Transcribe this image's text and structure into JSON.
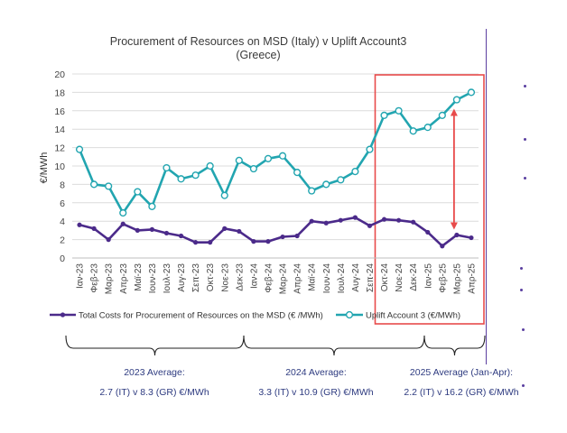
{
  "chart_data": {
    "type": "line",
    "title": "Procurement of Resources on MSD (Italy) v Uplift Account3",
    "subtitle": "(Greece)",
    "ylabel": "€/MWh",
    "xlabel": "",
    "ylim": [
      0,
      20
    ],
    "yticks": [
      0,
      2,
      4,
      6,
      8,
      10,
      12,
      14,
      16,
      18,
      20
    ],
    "grid": true,
    "categories": [
      "Ιαν-23",
      "Φεβ-23",
      "Μαρ-23",
      "Απρ-23",
      "Μαϊ-23",
      "Ιουν-23",
      "Ιουλ-23",
      "Αυγ-23",
      "Σεπ-23",
      "Οκτ-23",
      "Νοε-23",
      "Δεκ-23",
      "Ιαν-24",
      "Φεβ-24",
      "Μαρ-24",
      "Απρ-24",
      "Μαϊ-24",
      "Ιουν-24",
      "Ιουλ-24",
      "Αυγ-24",
      "Σεπ-24",
      "Οκτ-24",
      "Νοε-24",
      "Δεκ-24",
      "Ιαν-25",
      "Φεβ-25",
      "Μαρ-25",
      "Απρ-25"
    ],
    "series": [
      {
        "name": "Total Costs for Procurement of Resources on the MSD (€ /MWh)",
        "color": "#4b2a8a",
        "values": [
          3.6,
          3.2,
          2.0,
          3.7,
          3.0,
          3.1,
          2.7,
          2.4,
          1.7,
          1.7,
          3.2,
          2.9,
          1.8,
          1.8,
          2.3,
          2.4,
          4.0,
          3.8,
          4.1,
          4.4,
          3.5,
          4.2,
          4.1,
          3.9,
          2.8,
          1.3,
          2.5,
          2.2
        ]
      },
      {
        "name": "Uplift Account 3 (€/MWh)",
        "color": "#22a5b0",
        "values": [
          11.8,
          8.0,
          7.8,
          4.9,
          7.2,
          5.6,
          9.8,
          8.6,
          9.0,
          10.0,
          6.8,
          10.6,
          9.7,
          10.8,
          11.1,
          9.3,
          7.3,
          8.0,
          8.5,
          9.4,
          11.8,
          15.5,
          16.0,
          13.8,
          14.2,
          15.5,
          17.2,
          18.0
        ]
      }
    ],
    "highlight_range": [
      "Οκτ-24",
      "Απρ-25"
    ],
    "highlight_color": "#e84b4b"
  },
  "summary": {
    "periods": [
      {
        "label": "2023 Average:",
        "value": "2.7 (IT) v 8.3 (GR) €/MWh"
      },
      {
        "label": "2024 Average:",
        "value": "3.3 (IT) v 10.9 (GR) €/MWh"
      },
      {
        "label": "2025 Average (Jan-Apr):",
        "value": "2.2 (IT) v 16.2 (GR) €/MWh"
      }
    ]
  }
}
